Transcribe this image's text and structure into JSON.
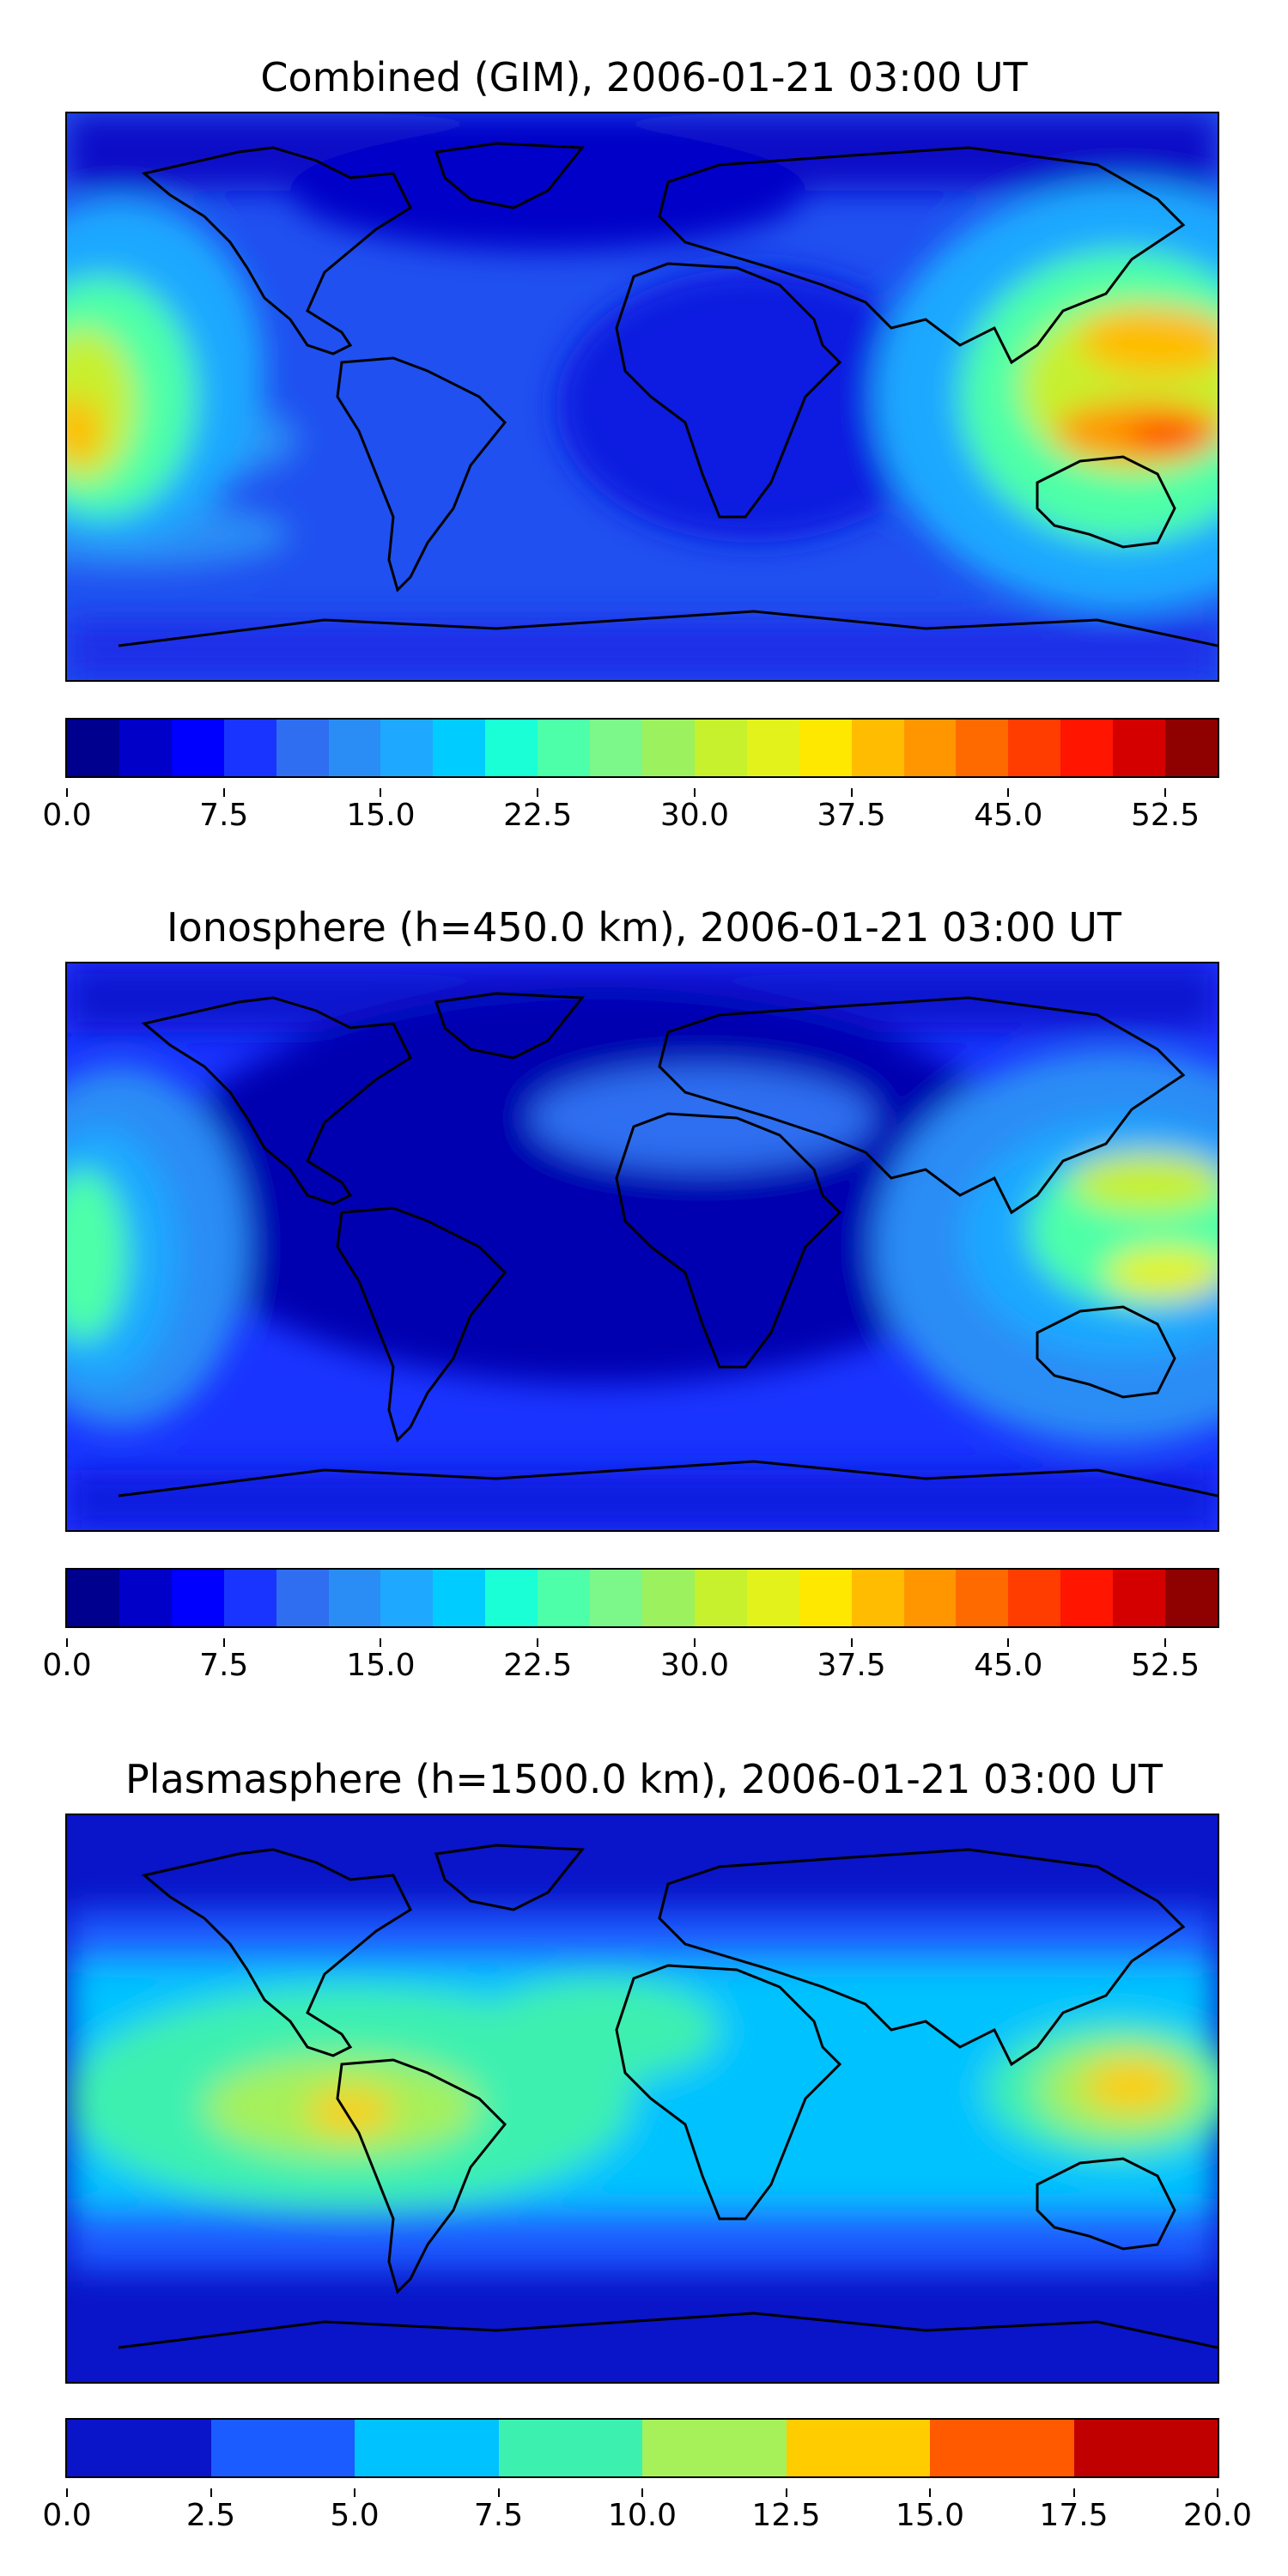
{
  "panels": [
    {
      "title": "Combined (GIM), 2006-01-21 03:00 UT",
      "colorbar": {
        "min": 0,
        "max": 55,
        "colors": [
          "#00008f",
          "#0000c8",
          "#0000ff",
          "#1a34ff",
          "#2f6ef0",
          "#2a8cf5",
          "#1ea8ff",
          "#00ccff",
          "#1affd6",
          "#4dffa8",
          "#7cf789",
          "#9cf25e",
          "#c7f02d",
          "#e4f21c",
          "#ffe800",
          "#ffbc00",
          "#ff9600",
          "#ff6a00",
          "#ff3d00",
          "#ff1500",
          "#d40000",
          "#8f0000"
        ],
        "tick_labels": [
          "0.0",
          "7.5",
          "15.0",
          "22.5",
          "30.0",
          "37.5",
          "45.0",
          "52.5"
        ],
        "tick_values": [
          0,
          7.5,
          15,
          22.5,
          30,
          37.5,
          45,
          52.5
        ]
      }
    },
    {
      "title": "Ionosphere  (h=450.0 km), 2006-01-21 03:00 UT",
      "colorbar": {
        "min": 0,
        "max": 55,
        "colors": [
          "#00008f",
          "#0000c8",
          "#0000ff",
          "#1a34ff",
          "#2f6ef0",
          "#2a8cf5",
          "#1ea8ff",
          "#00ccff",
          "#1affd6",
          "#4dffa8",
          "#7cf789",
          "#9cf25e",
          "#c7f02d",
          "#e4f21c",
          "#ffe800",
          "#ffbc00",
          "#ff9600",
          "#ff6a00",
          "#ff3d00",
          "#ff1500",
          "#d40000",
          "#8f0000"
        ],
        "tick_labels": [
          "0.0",
          "7.5",
          "15.0",
          "22.5",
          "30.0",
          "37.5",
          "45.0",
          "52.5"
        ],
        "tick_values": [
          0,
          7.5,
          15,
          22.5,
          30,
          37.5,
          45,
          52.5
        ]
      }
    },
    {
      "title": "Plasmasphere (h=1500.0 km), 2006-01-21 03:00 UT",
      "colorbar": {
        "min": 0,
        "max": 20,
        "colors": [
          "#0a14c8",
          "#1a5cff",
          "#00c2ff",
          "#3cf0b0",
          "#a6f05a",
          "#ffcc00",
          "#ff5a00",
          "#c00000"
        ],
        "tick_labels": [
          "0.0",
          "2.5",
          "5.0",
          "7.5",
          "10.0",
          "12.5",
          "15.0",
          "17.5",
          "20.0"
        ],
        "tick_values": [
          0,
          2.5,
          5,
          7.5,
          10,
          12.5,
          15,
          17.5,
          20
        ]
      }
    }
  ]
}
